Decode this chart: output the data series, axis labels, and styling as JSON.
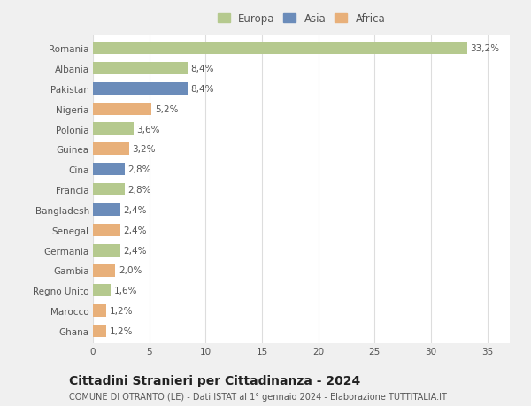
{
  "countries": [
    "Romania",
    "Albania",
    "Pakistan",
    "Nigeria",
    "Polonia",
    "Guinea",
    "Cina",
    "Francia",
    "Bangladesh",
    "Senegal",
    "Germania",
    "Gambia",
    "Regno Unito",
    "Marocco",
    "Ghana"
  ],
  "values": [
    33.2,
    8.4,
    8.4,
    5.2,
    3.6,
    3.2,
    2.8,
    2.8,
    2.4,
    2.4,
    2.4,
    2.0,
    1.6,
    1.2,
    1.2
  ],
  "labels": [
    "33,2%",
    "8,4%",
    "8,4%",
    "5,2%",
    "3,6%",
    "3,2%",
    "2,8%",
    "2,8%",
    "2,4%",
    "2,4%",
    "2,4%",
    "2,0%",
    "1,6%",
    "1,2%",
    "1,2%"
  ],
  "continents": [
    "Europa",
    "Europa",
    "Asia",
    "Africa",
    "Europa",
    "Africa",
    "Asia",
    "Europa",
    "Asia",
    "Africa",
    "Europa",
    "Africa",
    "Europa",
    "Africa",
    "Africa"
  ],
  "colors": {
    "Europa": "#b5c98e",
    "Asia": "#6b8cba",
    "Africa": "#e8b07a"
  },
  "title": "Cittadini Stranieri per Cittadinanza - 2024",
  "subtitle": "COMUNE DI OTRANTO (LE) - Dati ISTAT al 1° gennaio 2024 - Elaborazione TUTTITALIA.IT",
  "xlim": [
    0,
    37
  ],
  "xticks": [
    0,
    5,
    10,
    15,
    20,
    25,
    30,
    35
  ],
  "bg_color": "#f0f0f0",
  "plot_bg_color": "#ffffff",
  "grid_color": "#dddddd",
  "bar_height": 0.62,
  "label_fontsize": 7.5,
  "tick_fontsize": 7.5,
  "title_fontsize": 10,
  "subtitle_fontsize": 7,
  "legend_fontsize": 8.5
}
